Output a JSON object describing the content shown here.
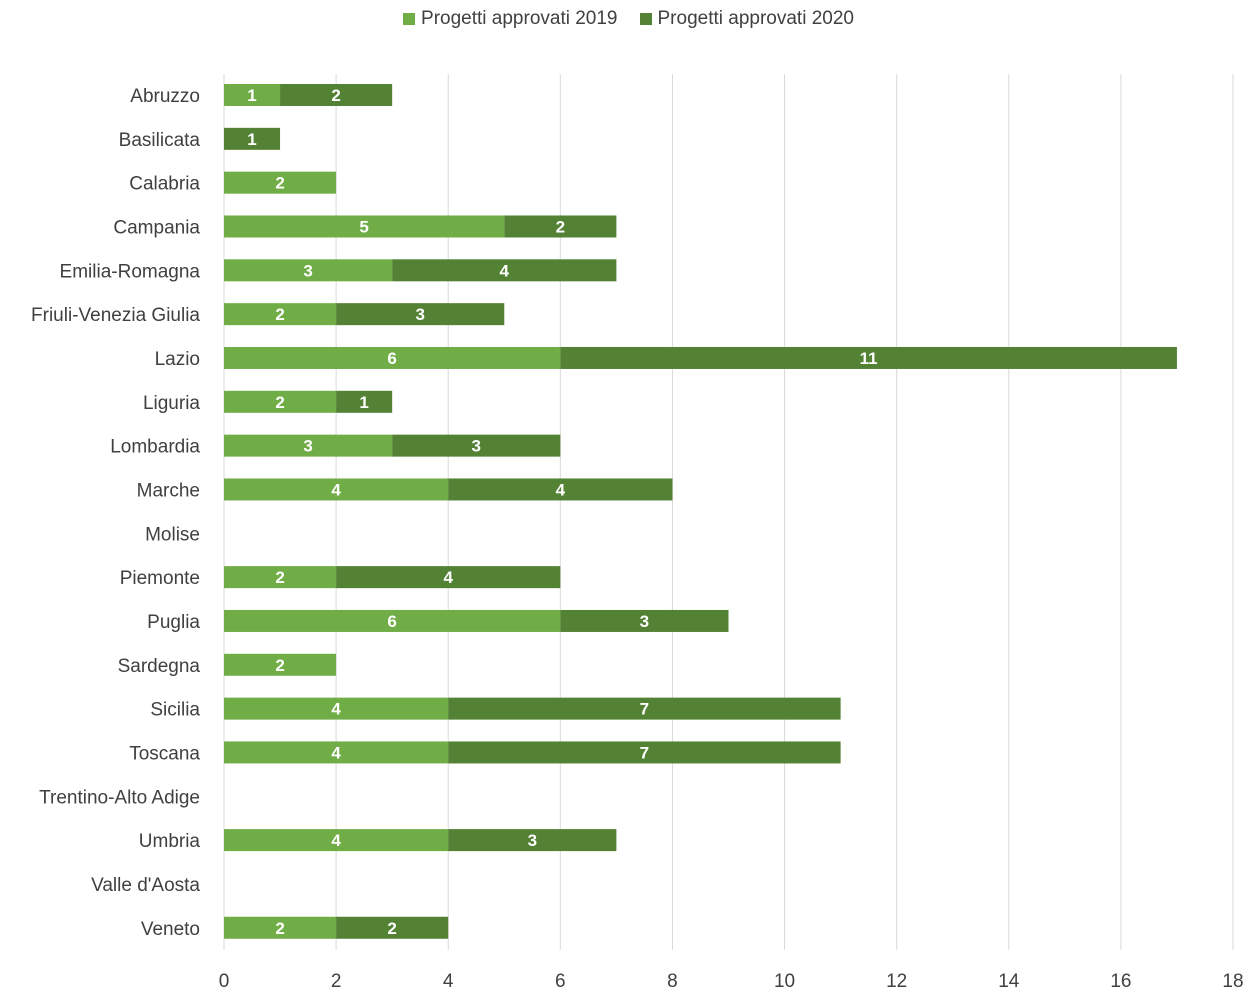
{
  "chart_data": {
    "type": "bar",
    "orientation": "horizontal",
    "stacked": true,
    "title": "",
    "xlabel": "",
    "ylabel": "",
    "categories": [
      "Abruzzo",
      "Basilicata",
      "Calabria",
      "Campania",
      "Emilia-Romagna",
      "Friuli-Venezia Giulia",
      "Lazio",
      "Liguria",
      "Lombardia",
      "Marche",
      "Molise",
      "Piemonte",
      "Puglia",
      "Sardegna",
      "Sicilia",
      "Toscana",
      "Trentino-Alto Adige",
      "Umbria",
      "Valle d'Aosta",
      "Veneto"
    ],
    "series": [
      {
        "name": "Progetti approvati 2019",
        "color": "#70ad47",
        "values": [
          1,
          0,
          2,
          5,
          3,
          2,
          6,
          2,
          3,
          4,
          0,
          2,
          6,
          2,
          4,
          4,
          0,
          4,
          0,
          2
        ]
      },
      {
        "name": "Progetti approvati 2020",
        "color": "#548235",
        "values": [
          2,
          1,
          0,
          2,
          4,
          3,
          11,
          1,
          3,
          4,
          0,
          4,
          3,
          0,
          7,
          7,
          0,
          3,
          0,
          2
        ]
      }
    ],
    "xlim": [
      0,
      18
    ],
    "xticks": [
      0,
      2,
      4,
      6,
      8,
      10,
      12,
      14,
      16,
      18
    ],
    "grid": true,
    "legend_position": "top",
    "data_labels": true
  }
}
